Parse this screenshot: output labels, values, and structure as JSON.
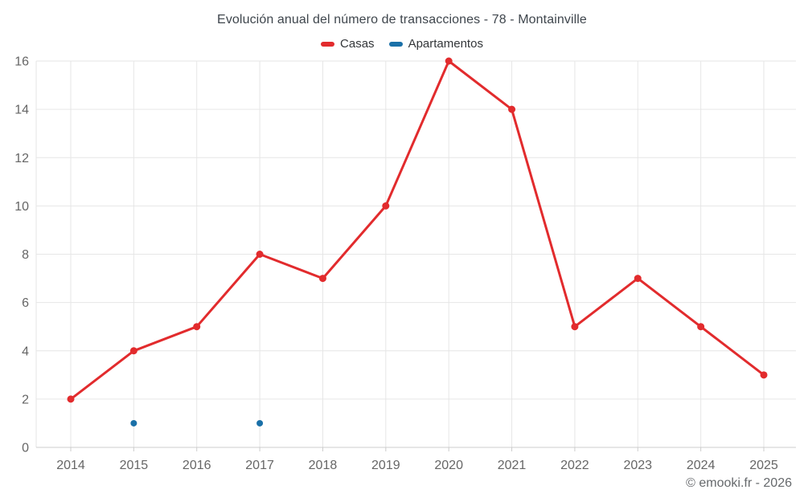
{
  "header": {
    "title": "Evolución anual del número de transacciones - 78 - Montainville"
  },
  "legend": {
    "items": [
      {
        "label": "Casas",
        "color": "#e22b2d"
      },
      {
        "label": "Apartamentos",
        "color": "#1a70a8"
      }
    ]
  },
  "footer": {
    "text": "© emooki.fr - 2026"
  },
  "colors": {
    "grid": "#e6e6e6",
    "axis_line": "#cccccc",
    "tick_label": "#666666",
    "background": "#ffffff"
  },
  "chart_data": {
    "type": "line",
    "title": "Evolución anual del número de transacciones - 78 - Montainville",
    "categories": [
      "2014",
      "2015",
      "2016",
      "2017",
      "2018",
      "2019",
      "2020",
      "2021",
      "2022",
      "2023",
      "2024",
      "2025"
    ],
    "series": [
      {
        "name": "Casas",
        "color": "#e22b2d",
        "marker_radius": 4.5,
        "line_width": 3,
        "values": [
          2,
          4,
          5,
          8,
          7,
          10,
          16,
          14,
          5,
          7,
          5,
          3
        ]
      },
      {
        "name": "Apartamentos",
        "color": "#1a70a8",
        "marker_radius": 4,
        "line_width": 3,
        "values": [
          null,
          1,
          null,
          1,
          null,
          null,
          null,
          null,
          null,
          null,
          null,
          null
        ]
      }
    ],
    "xlabel": "",
    "ylabel": "",
    "ylim": [
      0,
      16
    ],
    "y_ticks": [
      0,
      2,
      4,
      6,
      8,
      10,
      12,
      14,
      16
    ],
    "grid": true,
    "legend_position": "top"
  }
}
